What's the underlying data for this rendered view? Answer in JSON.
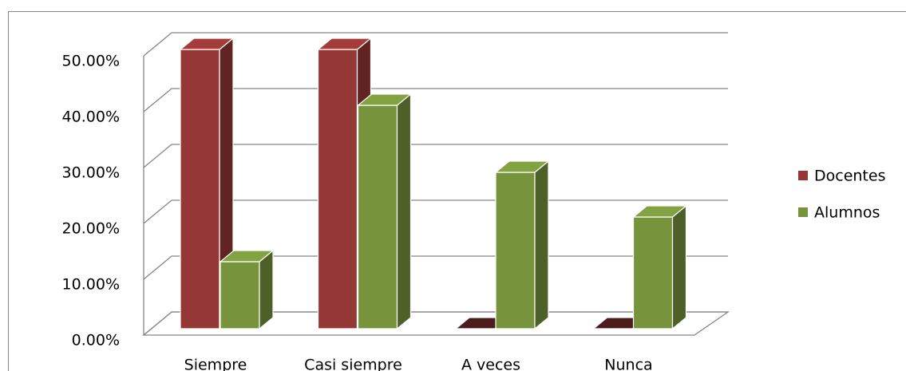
{
  "chart_data": {
    "type": "bar3d",
    "categories": [
      "Siempre",
      "Casi siempre",
      "A veces",
      "Nunca"
    ],
    "series": [
      {
        "name": "Docentes",
        "color": "#953735",
        "values": [
          50,
          50,
          0,
          0
        ]
      },
      {
        "name": "Alumnos",
        "color": "#77933c",
        "values": [
          12,
          40,
          28,
          20
        ]
      }
    ],
    "ylim": [
      0,
      50
    ],
    "yticks": [
      {
        "value": 0,
        "label": "0.00%"
      },
      {
        "value": 10,
        "label": "10.00%"
      },
      {
        "value": 20,
        "label": "20.00%"
      },
      {
        "value": 30,
        "label": "30.00%"
      },
      {
        "value": 40,
        "label": "40.00%"
      },
      {
        "value": 50,
        "label": "50.00%"
      }
    ],
    "grid": true,
    "legend": "right"
  }
}
